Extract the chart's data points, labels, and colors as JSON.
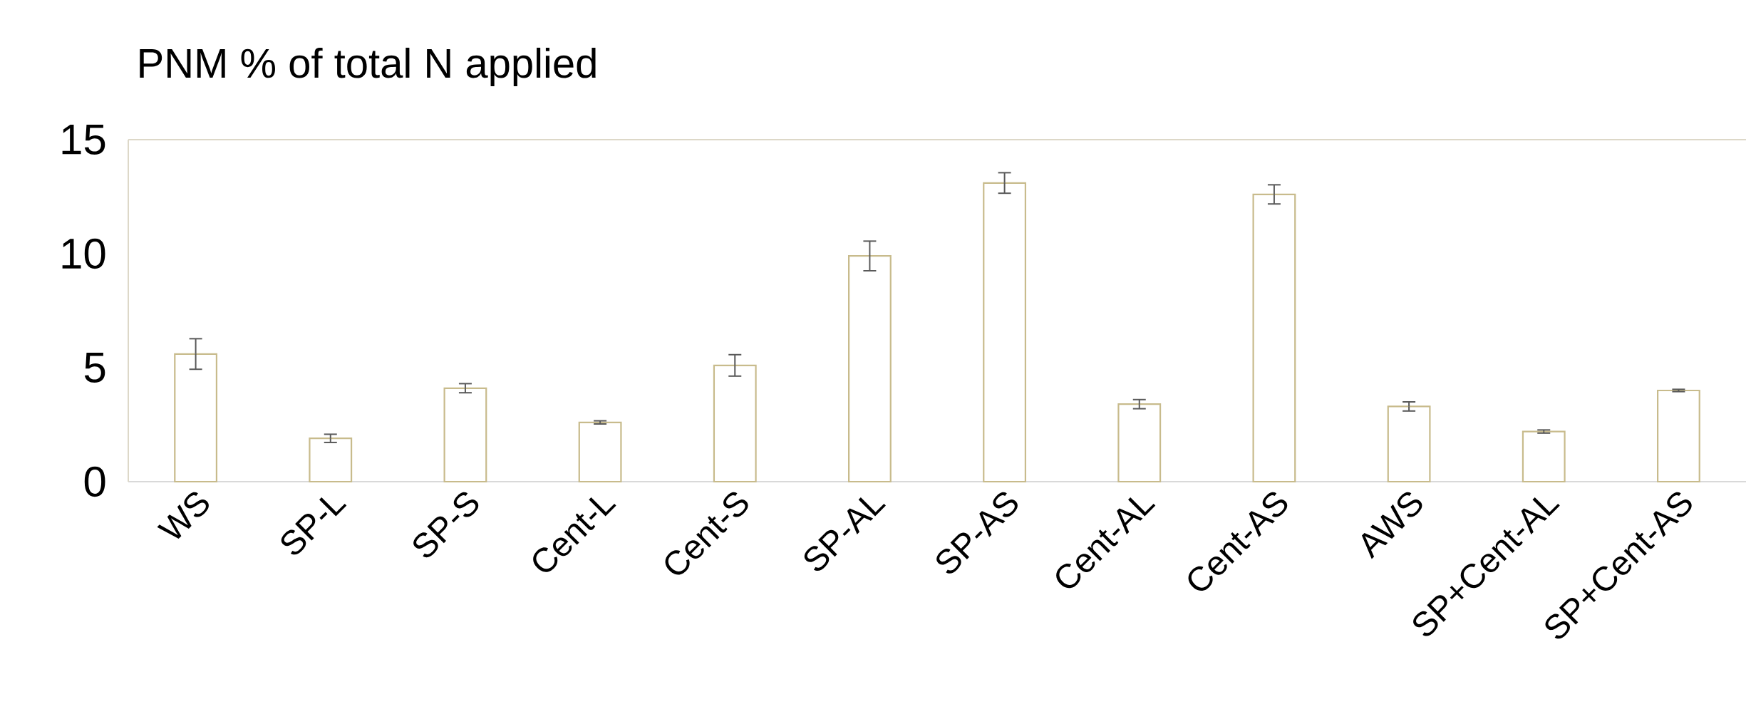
{
  "chart_data": {
    "type": "bar",
    "title": "PNM % of total N applied",
    "categories": [
      "WS",
      "SP-L",
      "SP-S",
      "Cent-L",
      "Cent-S",
      "SP-AL",
      "SP-AS",
      "Cent-AL",
      "Cent-AS",
      "AWS",
      "SP+Cent-AL",
      "SP+Cent-AS"
    ],
    "values": [
      5.6,
      1.9,
      4.1,
      2.6,
      5.1,
      9.9,
      13.1,
      3.4,
      12.6,
      3.3,
      2.2,
      4.0
    ],
    "errors": [
      0.67,
      0.18,
      0.2,
      0.07,
      0.47,
      0.65,
      0.45,
      0.2,
      0.42,
      0.2,
      0.07,
      0.05
    ],
    "color": "#c8bb8c",
    "ylim": [
      0,
      15
    ],
    "yticks": [
      0,
      5,
      10,
      15
    ]
  }
}
